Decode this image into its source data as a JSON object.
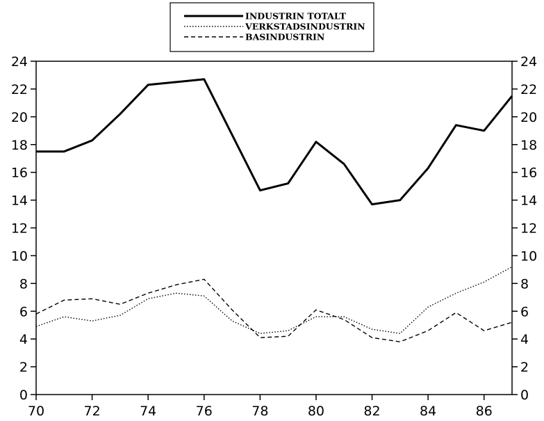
{
  "chart_data": {
    "type": "line",
    "title": "",
    "xlabel": "",
    "ylabel": "",
    "xlim": [
      70,
      87
    ],
    "ylim": [
      0,
      24
    ],
    "x_ticks": [
      70,
      72,
      74,
      76,
      78,
      80,
      82,
      84,
      86
    ],
    "x_tick_labels": [
      "70",
      "72",
      "74",
      "76",
      "78",
      "80",
      "82",
      "84",
      "86"
    ],
    "y_ticks": [
      0,
      2,
      4,
      6,
      8,
      10,
      12,
      14,
      16,
      18,
      20,
      22,
      24
    ],
    "y_tick_labels": [
      "0",
      "2",
      "4",
      "6",
      "8",
      "10",
      "12",
      "14",
      "16",
      "18",
      "20",
      "22",
      "24"
    ],
    "grid": false,
    "legend_position": "top-center",
    "x": [
      70,
      71,
      72,
      73,
      74,
      75,
      76,
      77,
      78,
      79,
      80,
      81,
      82,
      83,
      84,
      85,
      86,
      87
    ],
    "series": [
      {
        "name": "INDUSTRIN TOTALT",
        "style": "solid",
        "color": "#000000",
        "values": [
          17.5,
          17.5,
          18.3,
          20.2,
          22.3,
          22.5,
          22.7,
          18.7,
          14.7,
          15.2,
          18.2,
          16.6,
          13.7,
          14.0,
          16.3,
          19.4,
          19.0,
          21.5
        ]
      },
      {
        "name": "VERKSTADSINDUSTRIN",
        "style": "dotted",
        "color": "#000000",
        "values": [
          4.9,
          5.6,
          5.3,
          5.7,
          6.9,
          7.3,
          7.1,
          5.3,
          4.4,
          4.6,
          5.6,
          5.6,
          4.7,
          4.4,
          6.3,
          7.3,
          8.1,
          9.2
        ]
      },
      {
        "name": "BASINDUSTRIN",
        "style": "dashed",
        "color": "#000000",
        "values": [
          5.8,
          6.8,
          6.9,
          6.5,
          7.3,
          7.9,
          8.3,
          6.1,
          4.1,
          4.2,
          6.1,
          5.4,
          4.1,
          3.8,
          4.6,
          5.9,
          4.6,
          5.2
        ]
      }
    ]
  }
}
